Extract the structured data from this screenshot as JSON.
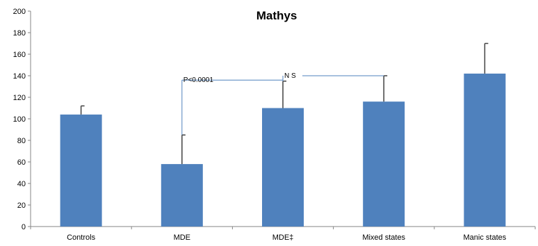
{
  "chart_data": {
    "type": "bar",
    "title": "Mathys",
    "xlabel": "",
    "ylabel": "",
    "categories": [
      "Controls",
      "MDE",
      "MDE‡",
      "Mixed states",
      "Manic states"
    ],
    "values": [
      104,
      58,
      110,
      116,
      142
    ],
    "errors_upper": [
      8,
      27,
      25,
      24,
      28
    ],
    "ylim": [
      0,
      200
    ],
    "yticks": [
      0,
      20,
      40,
      60,
      80,
      100,
      120,
      140,
      160,
      180,
      200
    ],
    "grid": false,
    "legend": "none",
    "bar_color": "#4f81bd",
    "error_color": "#404040",
    "annotation_color": "#4f81bd",
    "annotations": [
      {
        "text": "P<0.0001",
        "from": "MDE",
        "to": "MDE‡",
        "y": 136
      },
      {
        "text": "N S",
        "from": "MDE‡",
        "to": "Mixed states",
        "y": 140
      }
    ]
  }
}
